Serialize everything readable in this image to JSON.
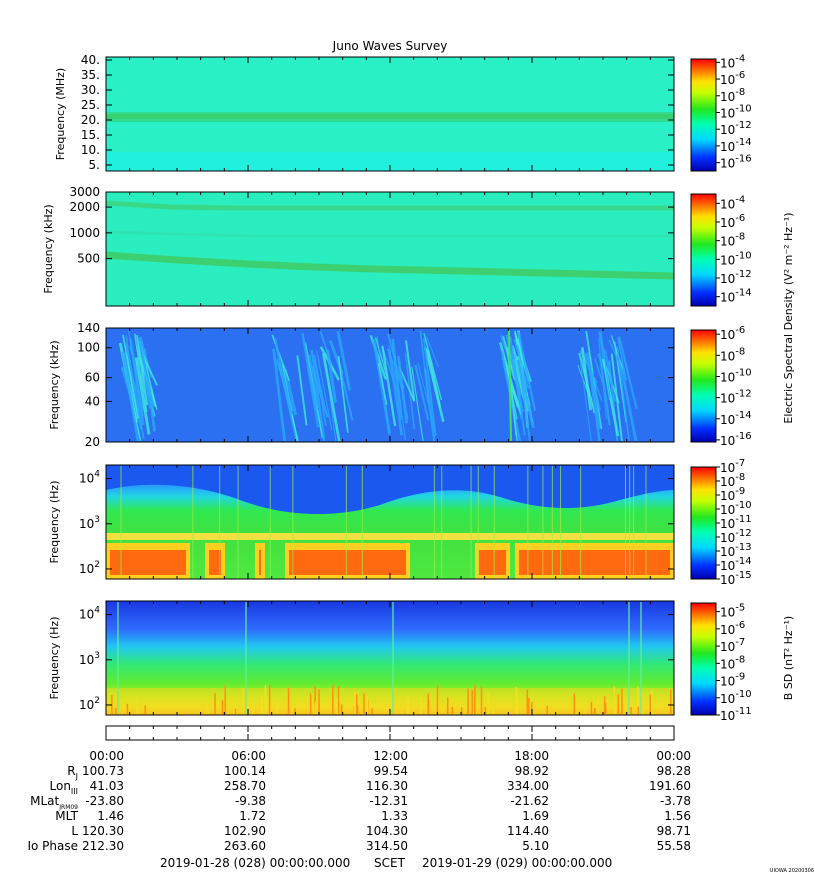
{
  "title": "Juno Waves Survey",
  "footer": {
    "start": "2019-01-28 (028) 00:00:00.000",
    "scet": "SCET",
    "end": "2019-01-29 (029) 00:00:00.000",
    "stamp": "UIOWA 20200306"
  },
  "time_ticks": [
    "00:00",
    "06:00",
    "12:00",
    "18:00",
    "00:00"
  ],
  "ephemeris": [
    {
      "label": "R",
      "sub": "J",
      "values": [
        "100.73",
        "100.14",
        "99.54",
        "98.92",
        "98.28"
      ]
    },
    {
      "label": "Lon",
      "sub": "III",
      "values": [
        "41.03",
        "258.70",
        "116.30",
        "334.00",
        "191.60"
      ]
    },
    {
      "label": "MLat",
      "sub": "JRM09",
      "values": [
        "-23.80",
        "-9.38",
        "-12.31",
        "-21.62",
        "-3.78"
      ]
    },
    {
      "label": "MLT",
      "sub": "",
      "values": [
        "1.46",
        "1.72",
        "1.33",
        "1.69",
        "1.56"
      ]
    },
    {
      "label": "L",
      "sub": "",
      "values": [
        "120.30",
        "102.90",
        "104.30",
        "114.40",
        "98.71"
      ]
    },
    {
      "label": "Io Phase",
      "sub": "",
      "values": [
        "212.30",
        "263.60",
        "314.50",
        "5.10",
        "55.58"
      ]
    }
  ],
  "colorbar_labels": {
    "electric": "Electric Spectral Density (V² m⁻² Hz⁻¹)",
    "magnetic": "B SD (nT² Hz⁻¹)"
  },
  "chart_data": [
    {
      "type": "heatmap",
      "name": "HFR high",
      "ylabel": "Frequency (MHz)",
      "yscale": "linear",
      "ylim": [
        3,
        41
      ],
      "yticks": [
        "40.",
        "35.",
        "30.",
        "25.",
        "20.",
        "15.",
        "10.",
        "5."
      ],
      "yticks_values": [
        40,
        35,
        30,
        25,
        20,
        15,
        10,
        5
      ],
      "colorbar": {
        "exponents": [
          "-4",
          "-6",
          "-8",
          "-10",
          "-12",
          "-14",
          "-16"
        ],
        "range": [
          -17,
          -3.6
        ]
      }
    },
    {
      "type": "heatmap",
      "name": "HFR low",
      "ylabel": "Frequency (kHz)",
      "yscale": "log",
      "ylim": [
        140,
        3000
      ],
      "yticks": [
        "3000",
        "2000",
        "1000",
        "500"
      ],
      "yticks_values": [
        3000,
        2000,
        1000,
        500
      ],
      "colorbar": {
        "exponents": [
          "-4",
          "-6",
          "-8",
          "-10",
          "-12",
          "-14"
        ],
        "range": [
          -15,
          -3
        ]
      }
    },
    {
      "type": "heatmap",
      "name": "LFR high",
      "ylabel": "Frequency (kHz)",
      "yscale": "log",
      "ylim": [
        20,
        140
      ],
      "yticks": [
        "140",
        "100",
        "60",
        "40",
        "20"
      ],
      "yticks_values": [
        140,
        100,
        60,
        40,
        20
      ],
      "colorbar": {
        "exponents": [
          "-6",
          "-8",
          "-10",
          "-12",
          "-14",
          "-16"
        ],
        "range": [
          -16.2,
          -5.6
        ]
      }
    },
    {
      "type": "heatmap",
      "name": "LFR low electric",
      "ylabel": "Frequency (Hz)",
      "yscale": "log",
      "ylim": [
        60,
        20000
      ],
      "yticks": [
        "10",
        "10",
        "10"
      ],
      "yticks_exp": [
        "4",
        "3",
        "2"
      ],
      "yticks_values": [
        10000,
        1000,
        100
      ],
      "colorbar": {
        "exponents": [
          "-7",
          "-8",
          "-9",
          "-10",
          "-11",
          "-12",
          "-13",
          "-14",
          "-15"
        ],
        "range": [
          -15,
          -7
        ]
      }
    },
    {
      "type": "heatmap",
      "name": "LFR low magnetic",
      "ylabel": "Frequency (Hz)",
      "yscale": "log",
      "ylim": [
        60,
        20000
      ],
      "yticks": [
        "10",
        "10",
        "10"
      ],
      "yticks_exp": [
        "4",
        "3",
        "2"
      ],
      "yticks_values": [
        10000,
        1000,
        100
      ],
      "colorbar": {
        "exponents": [
          "-5",
          "-6",
          "-7",
          "-8",
          "-9",
          "-10",
          "-11"
        ],
        "range": [
          -11,
          -4.5
        ]
      }
    }
  ]
}
